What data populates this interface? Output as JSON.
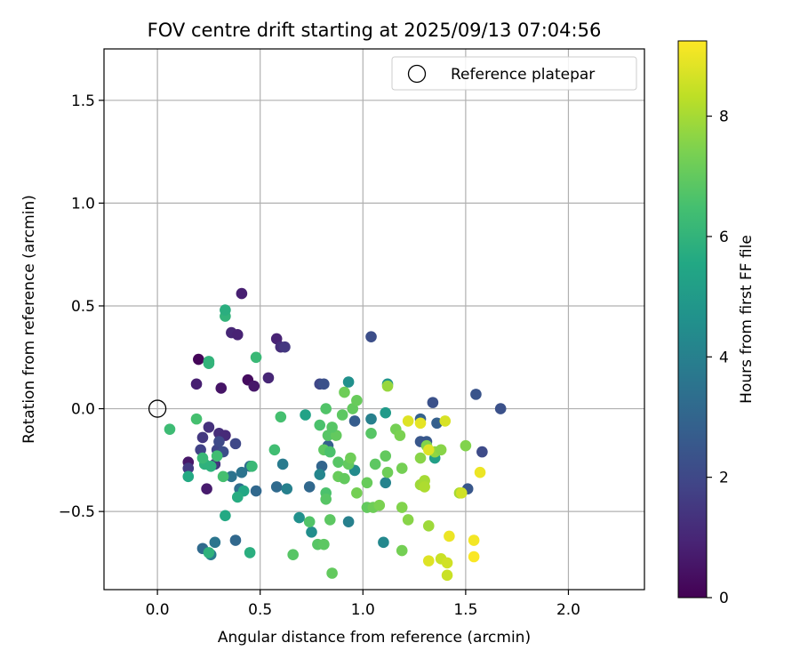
{
  "chart_data": {
    "type": "scatter",
    "title": "FOV centre drift starting at 2025/09/13 07:04:56",
    "xlabel": "Angular distance from reference (arcmin)",
    "ylabel": "Rotation from reference (arcmin)",
    "colorbar_label": "Hours from first FF file",
    "xlim": [
      -0.26,
      2.37
    ],
    "ylim": [
      -0.88,
      1.75
    ],
    "clim": [
      0,
      9.25
    ],
    "colormap": "viridis",
    "x_ticks": [
      0.0,
      0.5,
      1.0,
      1.5,
      2.0
    ],
    "x_tick_labels": [
      "0.0",
      "0.5",
      "1.0",
      "1.5",
      "2.0"
    ],
    "y_ticks": [
      -0.5,
      0.0,
      0.5,
      1.0,
      1.5
    ],
    "y_tick_labels": [
      "−0.5",
      "0.0",
      "0.5",
      "1.0",
      "1.5"
    ],
    "colorbar_ticks": [
      0,
      2,
      4,
      6,
      8
    ],
    "colorbar_tick_labels": [
      "0",
      "2",
      "4",
      "6",
      "8"
    ],
    "grid": true,
    "legend": {
      "position": "top-right",
      "entries": [
        "Reference platepar"
      ]
    },
    "reference_point": {
      "x": 0.0,
      "y": 0.0,
      "label": "Reference platepar"
    },
    "points": [
      [
        0.2,
        0.24,
        0.1
      ],
      [
        0.44,
        0.14,
        0.3
      ],
      [
        0.31,
        0.1,
        0.5
      ],
      [
        0.47,
        0.11,
        0.6
      ],
      [
        0.41,
        0.56,
        0.8
      ],
      [
        0.58,
        0.34,
        0.9
      ],
      [
        0.19,
        0.12,
        0.8
      ],
      [
        0.15,
        -0.26,
        0.6
      ],
      [
        0.24,
        -0.39,
        0.7
      ],
      [
        0.36,
        0.37,
        1.0
      ],
      [
        0.39,
        0.36,
        0.9
      ],
      [
        0.54,
        0.15,
        1.0
      ],
      [
        0.6,
        0.3,
        1.2
      ],
      [
        0.62,
        0.3,
        1.5
      ],
      [
        0.25,
        -0.09,
        1.3
      ],
      [
        0.3,
        -0.12,
        1.2
      ],
      [
        0.33,
        -0.13,
        1.1
      ],
      [
        0.22,
        -0.14,
        1.5
      ],
      [
        0.21,
        -0.2,
        1.8
      ],
      [
        0.28,
        -0.27,
        1.4
      ],
      [
        0.15,
        -0.29,
        1.6
      ],
      [
        0.29,
        -0.2,
        1.9
      ],
      [
        0.32,
        -0.21,
        2.2
      ],
      [
        0.3,
        -0.16,
        2.1
      ],
      [
        0.38,
        -0.17,
        2.0
      ],
      [
        0.79,
        0.12,
        2.0
      ],
      [
        0.81,
        0.12,
        2.3
      ],
      [
        1.04,
        0.35,
        2.2
      ],
      [
        1.34,
        0.03,
        2.3
      ],
      [
        1.55,
        0.07,
        2.4
      ],
      [
        1.67,
        0.0,
        2.3
      ],
      [
        1.58,
        -0.21,
        2.1
      ],
      [
        1.51,
        -0.39,
        2.5
      ],
      [
        1.31,
        -0.16,
        2.6
      ],
      [
        1.28,
        -0.16,
        2.5
      ],
      [
        1.36,
        -0.07,
        2.8
      ],
      [
        1.28,
        -0.05,
        2.9
      ],
      [
        0.96,
        -0.06,
        2.7
      ],
      [
        0.83,
        -0.18,
        2.8
      ],
      [
        0.8,
        -0.28,
        3.0
      ],
      [
        0.74,
        -0.38,
        3.1
      ],
      [
        0.58,
        -0.38,
        3.2
      ],
      [
        0.48,
        -0.4,
        3.1
      ],
      [
        0.4,
        -0.39,
        3.4
      ],
      [
        0.45,
        -0.28,
        3.3
      ],
      [
        0.41,
        -0.31,
        3.5
      ],
      [
        0.36,
        -0.33,
        3.5
      ],
      [
        0.38,
        -0.64,
        3.1
      ],
      [
        0.22,
        -0.68,
        3.2
      ],
      [
        0.28,
        -0.65,
        3.6
      ],
      [
        0.26,
        -0.71,
        3.8
      ],
      [
        0.61,
        -0.27,
        3.8
      ],
      [
        0.63,
        -0.39,
        4.0
      ],
      [
        0.79,
        -0.32,
        4.2
      ],
      [
        0.93,
        -0.55,
        4.0
      ],
      [
        0.75,
        -0.6,
        4.5
      ],
      [
        0.69,
        -0.53,
        4.6
      ],
      [
        1.1,
        -0.65,
        4.3
      ],
      [
        1.11,
        -0.36,
        4.1
      ],
      [
        1.04,
        -0.05,
        4.0
      ],
      [
        0.96,
        -0.3,
        4.4
      ],
      [
        0.93,
        0.13,
        4.6
      ],
      [
        1.12,
        0.12,
        4.8
      ],
      [
        1.11,
        -0.02,
        5.0
      ],
      [
        1.35,
        -0.24,
        5.2
      ],
      [
        0.72,
        -0.03,
        5.3
      ],
      [
        0.42,
        -0.4,
        5.5
      ],
      [
        0.39,
        -0.43,
        5.7
      ],
      [
        0.45,
        -0.7,
        5.8
      ],
      [
        0.25,
        -0.7,
        5.9
      ],
      [
        0.33,
        -0.52,
        5.6
      ],
      [
        0.15,
        -0.33,
        5.6
      ],
      [
        0.23,
        -0.27,
        5.9
      ],
      [
        0.26,
        -0.28,
        5.9
      ],
      [
        0.33,
        0.45,
        6.0
      ],
      [
        0.33,
        0.48,
        5.8
      ],
      [
        0.25,
        0.23,
        6.0
      ],
      [
        0.25,
        0.22,
        6.0
      ],
      [
        0.48,
        0.25,
        6.2
      ],
      [
        0.06,
        -0.1,
        6.3
      ],
      [
        0.19,
        -0.05,
        6.5
      ],
      [
        0.22,
        -0.24,
        6.2
      ],
      [
        0.29,
        -0.23,
        6.4
      ],
      [
        0.32,
        -0.33,
        6.5
      ],
      [
        0.46,
        -0.28,
        6.2
      ],
      [
        0.57,
        -0.2,
        6.4
      ],
      [
        0.6,
        -0.04,
        6.5
      ],
      [
        0.79,
        -0.08,
        6.6
      ],
      [
        0.83,
        -0.13,
        6.8
      ],
      [
        0.82,
        0.0,
        6.7
      ],
      [
        0.81,
        -0.2,
        6.9
      ],
      [
        0.84,
        -0.21,
        6.6
      ],
      [
        0.88,
        -0.26,
        6.8
      ],
      [
        0.87,
        -0.13,
        7.0
      ],
      [
        0.85,
        -0.09,
        6.8
      ],
      [
        0.9,
        -0.03,
        6.9
      ],
      [
        0.95,
        0.0,
        7.0
      ],
      [
        0.97,
        0.04,
        7.1
      ],
      [
        0.91,
        0.08,
        7.2
      ],
      [
        0.93,
        -0.27,
        7.0
      ],
      [
        0.94,
        -0.24,
        7.2
      ],
      [
        0.88,
        -0.33,
        7.1
      ],
      [
        0.91,
        -0.34,
        7.0
      ],
      [
        0.97,
        -0.41,
        7.3
      ],
      [
        1.02,
        -0.36,
        7.1
      ],
      [
        1.06,
        -0.27,
        6.9
      ],
      [
        1.04,
        -0.12,
        6.8
      ],
      [
        1.11,
        -0.23,
        7.0
      ],
      [
        1.12,
        -0.31,
        7.2
      ],
      [
        1.16,
        -0.1,
        7.3
      ],
      [
        1.18,
        -0.13,
        7.4
      ],
      [
        1.19,
        -0.29,
        7.3
      ],
      [
        1.02,
        -0.48,
        7.0
      ],
      [
        1.05,
        -0.48,
        7.2
      ],
      [
        1.08,
        -0.47,
        7.4
      ],
      [
        0.82,
        -0.41,
        6.6
      ],
      [
        0.82,
        -0.44,
        6.8
      ],
      [
        0.84,
        -0.54,
        6.9
      ],
      [
        0.74,
        -0.55,
        6.7
      ],
      [
        0.78,
        -0.66,
        6.8
      ],
      [
        0.81,
        -0.66,
        6.9
      ],
      [
        0.85,
        -0.8,
        7.0
      ],
      [
        0.66,
        -0.71,
        6.8
      ],
      [
        1.12,
        0.11,
        7.8
      ],
      [
        1.19,
        -0.69,
        7.3
      ],
      [
        1.22,
        -0.54,
        7.6
      ],
      [
        1.19,
        -0.48,
        7.5
      ],
      [
        1.28,
        -0.24,
        7.6
      ],
      [
        1.31,
        -0.18,
        7.5
      ],
      [
        1.35,
        -0.21,
        7.7
      ],
      [
        1.38,
        -0.2,
        7.6
      ],
      [
        1.28,
        -0.37,
        7.9
      ],
      [
        1.3,
        -0.35,
        8.0
      ],
      [
        1.3,
        -0.38,
        8.1
      ],
      [
        1.47,
        -0.41,
        8.0
      ],
      [
        1.5,
        -0.18,
        7.5
      ],
      [
        1.32,
        -0.57,
        7.9
      ],
      [
        1.22,
        -0.06,
        8.8
      ],
      [
        1.28,
        -0.07,
        8.9
      ],
      [
        1.4,
        -0.06,
        8.7
      ],
      [
        1.32,
        -0.2,
        8.8
      ],
      [
        1.48,
        -0.41,
        8.6
      ],
      [
        1.42,
        -0.62,
        9.0
      ],
      [
        1.54,
        -0.64,
        9.1
      ],
      [
        1.57,
        -0.31,
        9.0
      ],
      [
        1.54,
        -0.72,
        9.2
      ],
      [
        1.38,
        -0.73,
        8.5
      ],
      [
        1.41,
        -0.75,
        8.6
      ],
      [
        1.32,
        -0.74,
        8.8
      ],
      [
        1.41,
        -0.81,
        8.5
      ]
    ]
  }
}
